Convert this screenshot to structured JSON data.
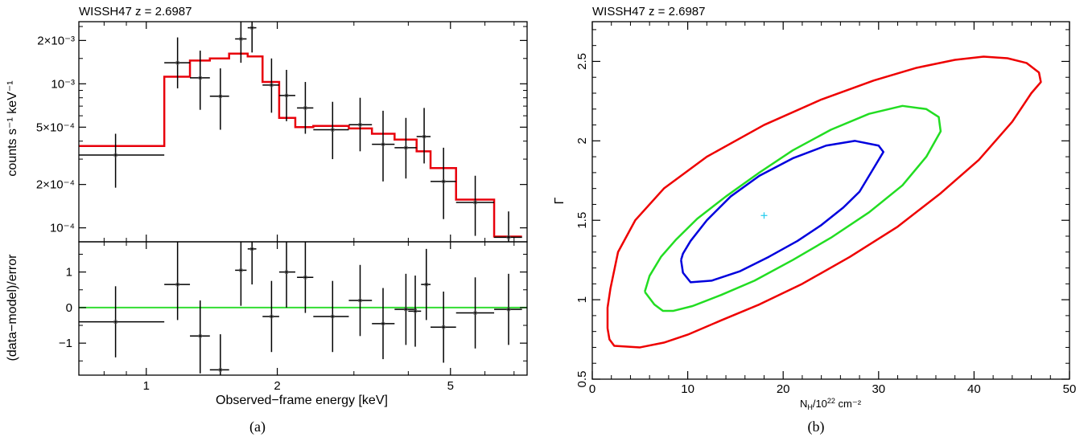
{
  "chart_data": [
    {
      "panel": "a-top",
      "type": "line",
      "title": "WISSH47 z = 2.6987",
      "ylabel": "counts s⁻¹ keV⁻¹",
      "x_scale": "log",
      "y_scale": "log",
      "xlim": [
        0.7,
        7.5
      ],
      "ylim": [
        8e-05,
        0.0027
      ],
      "yticks": [
        {
          "value": 0.002,
          "label": "2×10⁻³"
        },
        {
          "value": 0.001,
          "label": "10⁻³"
        },
        {
          "value": 0.0005,
          "label": "5×10⁻⁴"
        },
        {
          "value": 0.0002,
          "label": "2×10⁻⁴"
        },
        {
          "value": 0.0001,
          "label": "10⁻⁴"
        }
      ],
      "data_points": [
        {
          "x": 0.85,
          "xlo": 0.7,
          "xhi": 1.1,
          "y": 0.00032,
          "ylo": 0.00019,
          "yhi": 0.00045
        },
        {
          "x": 1.18,
          "xlo": 1.1,
          "xhi": 1.26,
          "y": 0.0014,
          "ylo": 0.00093,
          "yhi": 0.0021
        },
        {
          "x": 1.33,
          "xlo": 1.26,
          "xhi": 1.4,
          "y": 0.0011,
          "ylo": 0.00066,
          "yhi": 0.0017
        },
        {
          "x": 1.48,
          "xlo": 1.4,
          "xhi": 1.55,
          "y": 0.00082,
          "ylo": 0.00048,
          "yhi": 0.00128
        },
        {
          "x": 1.65,
          "xlo": 1.6,
          "xhi": 1.7,
          "y": 0.00205,
          "ylo": 0.0014,
          "yhi": 0.0029
        },
        {
          "x": 1.75,
          "xlo": 1.71,
          "xhi": 1.79,
          "y": 0.00245,
          "ylo": 0.00165,
          "yhi": 0.003
        },
        {
          "x": 1.94,
          "xlo": 1.85,
          "xhi": 2.02,
          "y": 0.00098,
          "ylo": 0.00063,
          "yhi": 0.0015
        },
        {
          "x": 2.1,
          "xlo": 2.02,
          "xhi": 2.2,
          "y": 0.00083,
          "ylo": 0.00055,
          "yhi": 0.00125
        },
        {
          "x": 2.32,
          "xlo": 2.22,
          "xhi": 2.42,
          "y": 0.00068,
          "ylo": 0.00045,
          "yhi": 0.00103
        },
        {
          "x": 2.68,
          "xlo": 2.42,
          "xhi": 2.92,
          "y": 0.00048,
          "ylo": 0.0003,
          "yhi": 0.00075
        },
        {
          "x": 3.1,
          "xlo": 2.92,
          "xhi": 3.3,
          "y": 0.00052,
          "ylo": 0.00034,
          "yhi": 0.0008
        },
        {
          "x": 3.5,
          "xlo": 3.3,
          "xhi": 3.72,
          "y": 0.00038,
          "ylo": 0.00021,
          "yhi": 0.00065
        },
        {
          "x": 3.95,
          "xlo": 3.72,
          "xhi": 4.18,
          "y": 0.00036,
          "ylo": 0.00022,
          "yhi": 0.00058
        },
        {
          "x": 4.35,
          "xlo": 4.18,
          "xhi": 4.5,
          "y": 0.00043,
          "ylo": 0.00028,
          "yhi": 0.00068
        },
        {
          "x": 4.82,
          "xlo": 4.5,
          "xhi": 5.15,
          "y": 0.00021,
          "ylo": 0.000115,
          "yhi": 0.00036
        },
        {
          "x": 5.7,
          "xlo": 5.15,
          "xhi": 6.3,
          "y": 0.00015,
          "ylo": 8.8e-05,
          "yhi": 0.00023
        },
        {
          "x": 6.8,
          "xlo": 6.3,
          "xhi": 7.3,
          "y": 8.6e-05,
          "ylo": 6.8e-05,
          "yhi": 0.00013
        }
      ],
      "model_steps": [
        {
          "x0": 0.7,
          "x1": 1.1,
          "y": 0.00037
        },
        {
          "x0": 1.1,
          "x1": 1.26,
          "y": 0.00112
        },
        {
          "x0": 1.26,
          "x1": 1.4,
          "y": 0.00145
        },
        {
          "x0": 1.4,
          "x1": 1.55,
          "y": 0.0015
        },
        {
          "x0": 1.55,
          "x1": 1.71,
          "y": 0.00162
        },
        {
          "x0": 1.71,
          "x1": 1.85,
          "y": 0.00155
        },
        {
          "x0": 1.85,
          "x1": 2.02,
          "y": 0.00103
        },
        {
          "x0": 2.02,
          "x1": 2.2,
          "y": 0.00058
        },
        {
          "x0": 2.2,
          "x1": 2.42,
          "y": 0.0005
        },
        {
          "x0": 2.42,
          "x1": 2.92,
          "y": 0.00051
        },
        {
          "x0": 2.92,
          "x1": 3.3,
          "y": 0.00049
        },
        {
          "x0": 3.3,
          "x1": 3.72,
          "y": 0.00045
        },
        {
          "x0": 3.72,
          "x1": 4.18,
          "y": 0.00041
        },
        {
          "x0": 4.18,
          "x1": 4.5,
          "y": 0.00034
        },
        {
          "x0": 4.5,
          "x1": 5.15,
          "y": 0.00026
        },
        {
          "x0": 5.15,
          "x1": 6.3,
          "y": 0.000157
        },
        {
          "x0": 6.3,
          "x1": 7.3,
          "y": 8.7e-05
        }
      ],
      "model_color": "#e8000b"
    },
    {
      "panel": "a-bottom",
      "type": "scatter",
      "ylabel": "(data−model)/error",
      "xlabel": "Observed−frame energy [keV]",
      "x_scale": "log",
      "xlim": [
        0.7,
        7.5
      ],
      "ylim": [
        -1.9,
        1.85
      ],
      "xticks": [
        {
          "value": 1,
          "label": "1"
        },
        {
          "value": 2,
          "label": "2"
        },
        {
          "value": 5,
          "label": "5"
        }
      ],
      "yticks": [
        {
          "value": 1,
          "label": "1"
        },
        {
          "value": 0,
          "label": "0"
        },
        {
          "value": -1,
          "label": "−1"
        }
      ],
      "zero_line_color": "#33dd33",
      "residuals": [
        {
          "x": 0.85,
          "xlo": 0.7,
          "xhi": 1.1,
          "y": -0.4,
          "ylo": -1.4,
          "yhi": 0.6
        },
        {
          "x": 1.18,
          "xlo": 1.1,
          "xhi": 1.26,
          "y": 0.65,
          "ylo": -0.35,
          "yhi": 1.85
        },
        {
          "x": 1.33,
          "xlo": 1.26,
          "xhi": 1.4,
          "y": -0.8,
          "ylo": -1.85,
          "yhi": 0.2
        },
        {
          "x": 1.48,
          "xlo": 1.4,
          "xhi": 1.55,
          "y": -1.75,
          "ylo": -1.9,
          "yhi": -0.75
        },
        {
          "x": 1.65,
          "xlo": 1.6,
          "xhi": 1.7,
          "y": 1.05,
          "ylo": 0.05,
          "yhi": 1.85
        },
        {
          "x": 1.75,
          "xlo": 1.71,
          "xhi": 1.79,
          "y": 1.65,
          "ylo": 0.65,
          "yhi": 1.85
        },
        {
          "x": 1.94,
          "xlo": 1.85,
          "xhi": 2.02,
          "y": -0.25,
          "ylo": -1.25,
          "yhi": 0.75
        },
        {
          "x": 2.1,
          "xlo": 2.02,
          "xhi": 2.2,
          "y": 1.0,
          "ylo": 0.0,
          "yhi": 1.85
        },
        {
          "x": 2.32,
          "xlo": 2.22,
          "xhi": 2.42,
          "y": 0.85,
          "ylo": -0.15,
          "yhi": 1.85
        },
        {
          "x": 2.68,
          "xlo": 2.42,
          "xhi": 2.92,
          "y": -0.25,
          "ylo": -1.25,
          "yhi": 0.75
        },
        {
          "x": 3.1,
          "xlo": 2.92,
          "xhi": 3.3,
          "y": 0.2,
          "ylo": -0.8,
          "yhi": 1.2
        },
        {
          "x": 3.5,
          "xlo": 3.3,
          "xhi": 3.72,
          "y": -0.45,
          "ylo": -1.45,
          "yhi": 0.55
        },
        {
          "x": 3.95,
          "xlo": 3.72,
          "xhi": 4.18,
          "y": -0.05,
          "ylo": -1.05,
          "yhi": 0.95
        },
        {
          "x": 4.15,
          "xlo": 4.0,
          "xhi": 4.28,
          "y": -0.1,
          "ylo": -1.1,
          "yhi": 0.9
        },
        {
          "x": 4.4,
          "xlo": 4.28,
          "xhi": 4.5,
          "y": 0.65,
          "ylo": -0.35,
          "yhi": 1.65
        },
        {
          "x": 4.82,
          "xlo": 4.5,
          "xhi": 5.15,
          "y": -0.55,
          "ylo": -1.55,
          "yhi": 0.45
        },
        {
          "x": 5.7,
          "xlo": 5.15,
          "xhi": 6.3,
          "y": -0.15,
          "ylo": -1.15,
          "yhi": 0.85
        },
        {
          "x": 6.8,
          "xlo": 6.3,
          "xhi": 7.3,
          "y": -0.05,
          "ylo": -1.05,
          "yhi": 0.95
        }
      ],
      "caption": "(a)"
    },
    {
      "panel": "b",
      "type": "line",
      "title": "WISSH47 z = 2.6987",
      "xlabel_main": "N",
      "xlabel_sub": "H",
      "xlabel_mid": "/10",
      "xlabel_sup": "22",
      "xlabel_end": " cm⁻²",
      "ylabel": "Γ",
      "xlim": [
        0,
        50
      ],
      "ylim": [
        0.5,
        2.75
      ],
      "xticks": [
        {
          "value": 0,
          "label": "0"
        },
        {
          "value": 10,
          "label": "10"
        },
        {
          "value": 20,
          "label": "20"
        },
        {
          "value": 30,
          "label": "30"
        },
        {
          "value": 40,
          "label": "40"
        },
        {
          "value": 50,
          "label": "50"
        }
      ],
      "yticks": [
        {
          "value": 0.5,
          "label": "0.5"
        },
        {
          "value": 1,
          "label": "1"
        },
        {
          "value": 1.5,
          "label": "1.5"
        },
        {
          "value": 2,
          "label": "2"
        },
        {
          "value": 2.5,
          "label": "2.5"
        }
      ],
      "best_fit": {
        "x": 18.0,
        "y": 1.53,
        "color": "#22ccee"
      },
      "contours": [
        {
          "color": "#0000dd",
          "points": [
            [
              9.3,
              1.25
            ],
            [
              9.5,
              1.17
            ],
            [
              10.3,
              1.11
            ],
            [
              12.5,
              1.12
            ],
            [
              15.5,
              1.18
            ],
            [
              18.5,
              1.27
            ],
            [
              21.5,
              1.37
            ],
            [
              24.0,
              1.47
            ],
            [
              26.3,
              1.58
            ],
            [
              28.0,
              1.68
            ],
            [
              29.5,
              1.83
            ],
            [
              30.5,
              1.93
            ],
            [
              30.0,
              1.97
            ],
            [
              27.5,
              2.0
            ],
            [
              24.5,
              1.97
            ],
            [
              21.0,
              1.89
            ],
            [
              17.5,
              1.78
            ],
            [
              14.5,
              1.65
            ],
            [
              12.0,
              1.5
            ],
            [
              10.3,
              1.37
            ],
            [
              9.5,
              1.29
            ],
            [
              9.3,
              1.25
            ]
          ]
        },
        {
          "color": "#22dd22",
          "points": [
            [
              5.5,
              1.05
            ],
            [
              6.5,
              0.97
            ],
            [
              7.4,
              0.93
            ],
            [
              8.5,
              0.93
            ],
            [
              10.5,
              0.96
            ],
            [
              13.5,
              1.03
            ],
            [
              17.0,
              1.12
            ],
            [
              21.0,
              1.25
            ],
            [
              25.0,
              1.39
            ],
            [
              29.0,
              1.55
            ],
            [
              32.5,
              1.72
            ],
            [
              35.0,
              1.9
            ],
            [
              36.5,
              2.06
            ],
            [
              36.3,
              2.15
            ],
            [
              35.0,
              2.2
            ],
            [
              32.5,
              2.22
            ],
            [
              29.0,
              2.17
            ],
            [
              25.0,
              2.07
            ],
            [
              21.0,
              1.94
            ],
            [
              17.5,
              1.8
            ],
            [
              14.0,
              1.65
            ],
            [
              11.0,
              1.51
            ],
            [
              8.8,
              1.38
            ],
            [
              7.2,
              1.27
            ],
            [
              6.0,
              1.15
            ],
            [
              5.5,
              1.05
            ]
          ]
        },
        {
          "color": "#ee0000",
          "points": [
            [
              1.6,
              0.82
            ],
            [
              1.8,
              0.75
            ],
            [
              2.3,
              0.71
            ],
            [
              5.0,
              0.7
            ],
            [
              7.5,
              0.73
            ],
            [
              10.0,
              0.78
            ],
            [
              13.5,
              0.87
            ],
            [
              17.5,
              0.97
            ],
            [
              22.0,
              1.1
            ],
            [
              27.0,
              1.27
            ],
            [
              32.0,
              1.46
            ],
            [
              36.5,
              1.67
            ],
            [
              40.5,
              1.88
            ],
            [
              44.0,
              2.12
            ],
            [
              46.0,
              2.3
            ],
            [
              47.0,
              2.37
            ],
            [
              46.8,
              2.43
            ],
            [
              45.5,
              2.49
            ],
            [
              43.5,
              2.52
            ],
            [
              41.0,
              2.53
            ],
            [
              38.0,
              2.51
            ],
            [
              34.0,
              2.46
            ],
            [
              29.5,
              2.38
            ],
            [
              24.0,
              2.26
            ],
            [
              18.0,
              2.1
            ],
            [
              12.0,
              1.9
            ],
            [
              7.5,
              1.7
            ],
            [
              4.5,
              1.5
            ],
            [
              2.7,
              1.3
            ],
            [
              1.9,
              1.07
            ],
            [
              1.6,
              0.95
            ],
            [
              1.6,
              0.82
            ]
          ]
        }
      ],
      "caption": "(b)"
    }
  ]
}
